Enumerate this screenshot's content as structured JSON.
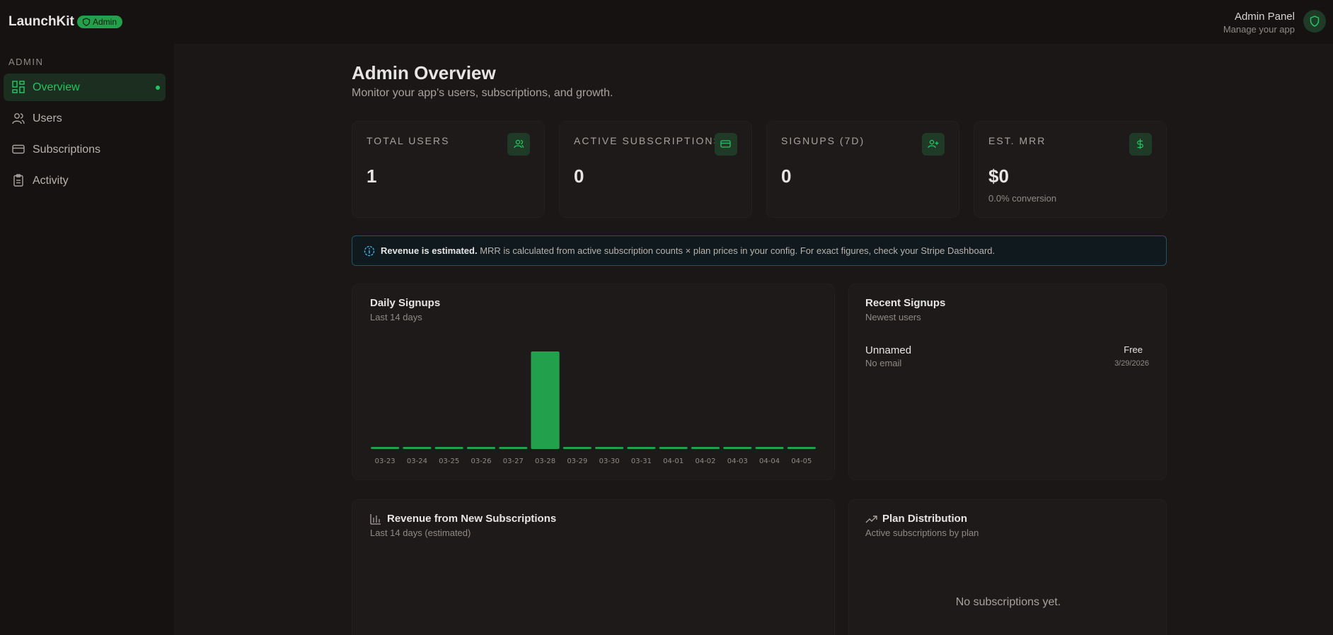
{
  "header": {
    "brand": "LaunchKit",
    "badge": "Admin",
    "panel_title": "Admin Panel",
    "panel_subtitle": "Manage your app"
  },
  "sidebar": {
    "section": "ADMIN",
    "items": [
      "Overview",
      "Users",
      "Subscriptions",
      "Activity"
    ]
  },
  "page": {
    "title": "Admin Overview",
    "subtitle": "Monitor your app's users, subscriptions, and growth."
  },
  "stats": [
    {
      "label": "TOTAL USERS",
      "value": "1"
    },
    {
      "label": "ACTIVE SUBSCRIPTIONS",
      "value": "0"
    },
    {
      "label": "SIGNUPS (7D)",
      "value": "0"
    },
    {
      "label": "EST. MRR",
      "value": "$0",
      "note": "0.0% conversion"
    }
  ],
  "banner": {
    "bold": "Revenue is estimated.",
    "text": "MRR is calculated from active subscription counts × plan prices in your config. For exact figures, check your Stripe Dashboard."
  },
  "chart_data": {
    "type": "bar",
    "title": "Daily Signups",
    "subtitle": "Last 14 days",
    "categories": [
      "03-23",
      "03-24",
      "03-25",
      "03-26",
      "03-27",
      "03-28",
      "03-29",
      "03-30",
      "03-31",
      "04-01",
      "04-02",
      "04-03",
      "04-04",
      "04-05"
    ],
    "values": [
      0,
      0,
      0,
      0,
      0,
      1,
      0,
      0,
      0,
      0,
      0,
      0,
      0,
      0
    ],
    "color": "#22a04b"
  },
  "recent_signups": {
    "title": "Recent Signups",
    "subtitle": "Newest users",
    "users": [
      {
        "name": "Unnamed",
        "email": "No email",
        "plan": "Free",
        "date": "3/29/2026"
      }
    ]
  },
  "revenue": {
    "title": "Revenue from New Subscriptions",
    "subtitle": "Last 14 days (estimated)"
  },
  "plan_distribution": {
    "title": "Plan Distribution",
    "subtitle": "Active subscriptions by plan",
    "empty": "No subscriptions yet."
  }
}
